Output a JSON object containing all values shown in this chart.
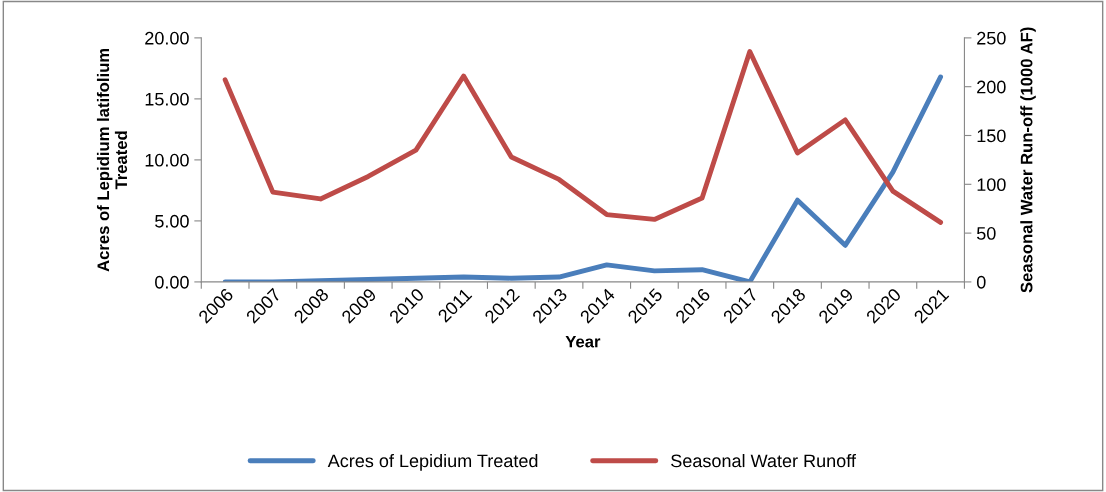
{
  "chart_data": {
    "type": "line",
    "xlabel": "Year",
    "ylabel": "Acres of Lepidium latifolium\nTreated",
    "y2label": "Seasonal Water Run-off (1000 AF)",
    "categories": [
      "2006",
      "2007",
      "2008",
      "2009",
      "2010",
      "2011",
      "2012",
      "2013",
      "2014",
      "2015",
      "2016",
      "2017",
      "2018",
      "2019",
      "2020",
      "2021"
    ],
    "series": [
      {
        "name": "Acres of Lepidium Treated",
        "color": "#4a7ebb",
        "values": [
          0,
          0,
          0.1,
          0.2,
          0.3,
          0.4,
          0.3,
          0.4,
          1.4,
          0.9,
          1.0,
          0,
          6.7,
          3.0,
          9.0,
          16.8
        ]
      },
      {
        "name": "Seasonal Water Runoff",
        "color": "#be4b48",
        "axis": "y2",
        "values": [
          207,
          92,
          85,
          108,
          135,
          211,
          128,
          105,
          69,
          64,
          86,
          236,
          132,
          166,
          93,
          61
        ]
      }
    ],
    "ylim": [
      0,
      20
    ],
    "yticks": [
      {
        "value": 0,
        "label": "0.00"
      },
      {
        "value": 5,
        "label": "5.00"
      },
      {
        "value": 10,
        "label": "10.00"
      },
      {
        "value": 15,
        "label": "15.00"
      },
      {
        "value": 20,
        "label": "20.00"
      }
    ],
    "y2lim": [
      0,
      250
    ],
    "y2ticks": [
      0,
      50,
      100,
      150,
      200,
      250
    ],
    "grid": false,
    "legend": "bottom",
    "marker": "none",
    "line_style": "solid"
  }
}
